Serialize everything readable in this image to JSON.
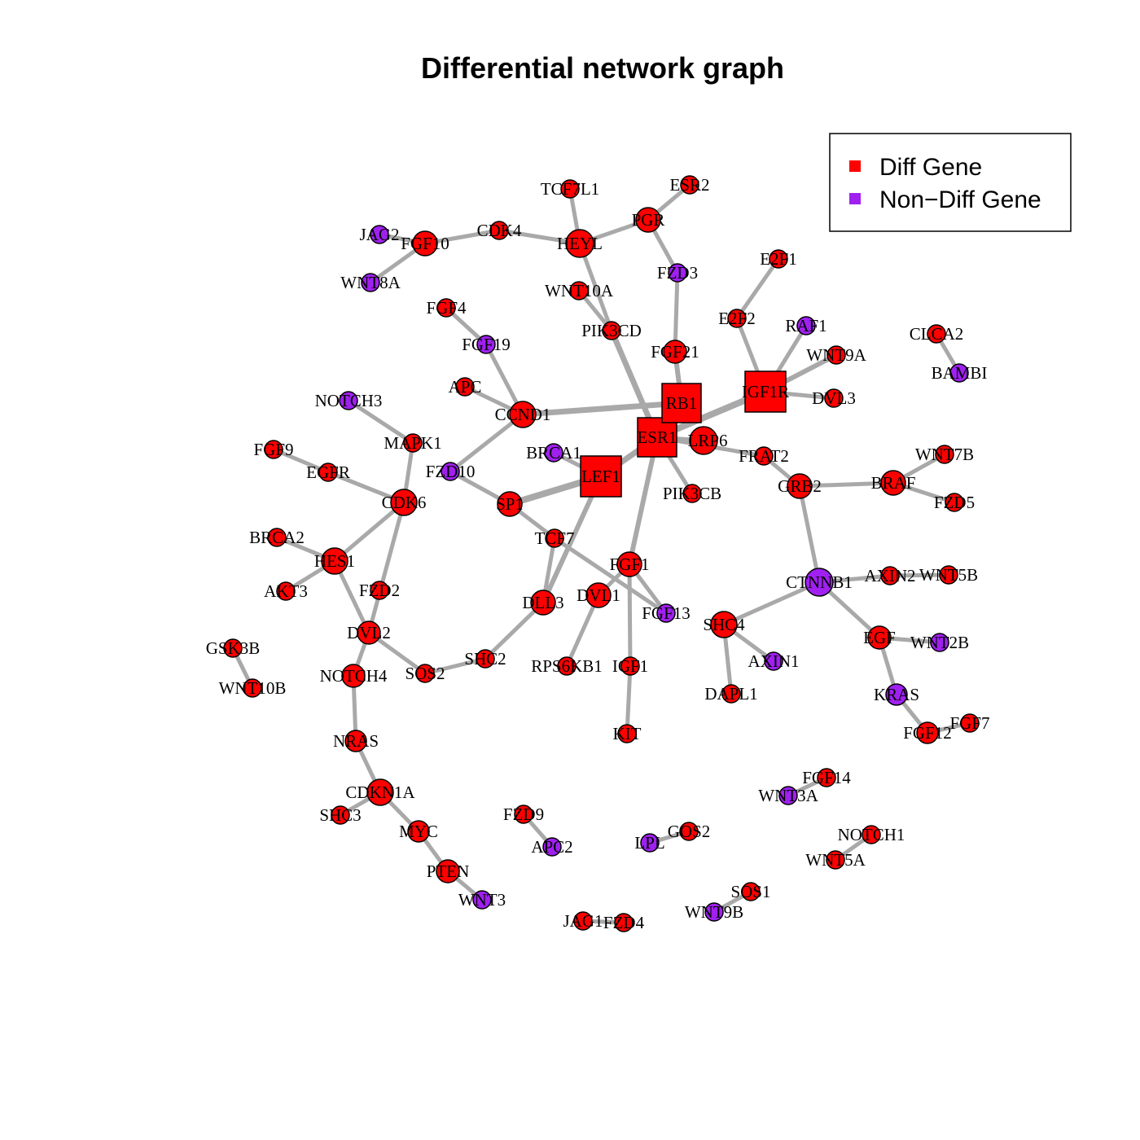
{
  "title": "Differential network graph",
  "legend": {
    "items": [
      {
        "label": "Diff Gene",
        "color": "#ff0000"
      },
      {
        "label": "Non−Diff Gene",
        "color": "#a020f0"
      }
    ]
  },
  "colors": {
    "diff": "#ff0000",
    "nondiff": "#a020f0",
    "edge": "#a9a9a9",
    "outline": "#000000"
  },
  "nodes": [
    {
      "id": "ESR1",
      "type": "diff",
      "shape": "square"
    },
    {
      "id": "RB1",
      "type": "diff",
      "shape": "square"
    },
    {
      "id": "IGF1R",
      "type": "diff",
      "shape": "square"
    },
    {
      "id": "LEF1",
      "type": "diff",
      "shape": "square"
    },
    {
      "id": "CTNNB1",
      "type": "nondiff",
      "shape": "circle"
    },
    {
      "id": "TCF7L1",
      "type": "diff",
      "shape": "circle"
    },
    {
      "id": "ESR2",
      "type": "diff",
      "shape": "circle"
    },
    {
      "id": "PGR",
      "type": "diff",
      "shape": "circle"
    },
    {
      "id": "HEYL",
      "type": "diff",
      "shape": "circle"
    },
    {
      "id": "CDK4",
      "type": "diff",
      "shape": "circle"
    },
    {
      "id": "FGF10",
      "type": "diff",
      "shape": "circle"
    },
    {
      "id": "JAG2",
      "type": "nondiff",
      "shape": "circle"
    },
    {
      "id": "WNT8A",
      "type": "nondiff",
      "shape": "circle"
    },
    {
      "id": "FZD3",
      "type": "nondiff",
      "shape": "circle"
    },
    {
      "id": "E2F1",
      "type": "diff",
      "shape": "circle"
    },
    {
      "id": "WNT10A",
      "type": "diff",
      "shape": "circle"
    },
    {
      "id": "FGF4",
      "type": "diff",
      "shape": "circle"
    },
    {
      "id": "FGF19",
      "type": "nondiff",
      "shape": "circle"
    },
    {
      "id": "E2F2",
      "type": "diff",
      "shape": "circle"
    },
    {
      "id": "RAF1",
      "type": "nondiff",
      "shape": "circle"
    },
    {
      "id": "PIK3CD",
      "type": "diff",
      "shape": "circle"
    },
    {
      "id": "CLCA2",
      "type": "diff",
      "shape": "circle"
    },
    {
      "id": "WNT9A",
      "type": "diff",
      "shape": "circle"
    },
    {
      "id": "FGF21",
      "type": "diff",
      "shape": "circle"
    },
    {
      "id": "BAMBI",
      "type": "nondiff",
      "shape": "circle"
    },
    {
      "id": "APC",
      "type": "diff",
      "shape": "circle"
    },
    {
      "id": "NOTCH3",
      "type": "nondiff",
      "shape": "circle"
    },
    {
      "id": "DVL3",
      "type": "diff",
      "shape": "circle"
    },
    {
      "id": "CCND1",
      "type": "diff",
      "shape": "circle"
    },
    {
      "id": "LRP6",
      "type": "diff",
      "shape": "circle"
    },
    {
      "id": "MAPK1",
      "type": "diff",
      "shape": "circle"
    },
    {
      "id": "FGF9",
      "type": "diff",
      "shape": "circle"
    },
    {
      "id": "BRCA1",
      "type": "nondiff",
      "shape": "circle"
    },
    {
      "id": "FRAT2",
      "type": "diff",
      "shape": "circle"
    },
    {
      "id": "WNT7B",
      "type": "diff",
      "shape": "circle"
    },
    {
      "id": "EGFR",
      "type": "diff",
      "shape": "circle"
    },
    {
      "id": "FZD10",
      "type": "nondiff",
      "shape": "circle"
    },
    {
      "id": "BRAF",
      "type": "diff",
      "shape": "circle"
    },
    {
      "id": "GRB2",
      "type": "diff",
      "shape": "circle"
    },
    {
      "id": "PIK3CB",
      "type": "diff",
      "shape": "circle"
    },
    {
      "id": "FZD5",
      "type": "diff",
      "shape": "circle"
    },
    {
      "id": "CDK6",
      "type": "diff",
      "shape": "circle"
    },
    {
      "id": "SP1",
      "type": "diff",
      "shape": "circle"
    },
    {
      "id": "BRCA2",
      "type": "diff",
      "shape": "circle"
    },
    {
      "id": "TCF7",
      "type": "diff",
      "shape": "circle"
    },
    {
      "id": "HES1",
      "type": "diff",
      "shape": "circle"
    },
    {
      "id": "FGF1",
      "type": "diff",
      "shape": "circle"
    },
    {
      "id": "AXIN2",
      "type": "diff",
      "shape": "circle"
    },
    {
      "id": "WNT5B",
      "type": "diff",
      "shape": "circle"
    },
    {
      "id": "AKT3",
      "type": "diff",
      "shape": "circle"
    },
    {
      "id": "FZD2",
      "type": "diff",
      "shape": "circle"
    },
    {
      "id": "DLL3",
      "type": "diff",
      "shape": "circle"
    },
    {
      "id": "DVL1",
      "type": "diff",
      "shape": "circle"
    },
    {
      "id": "FGF13",
      "type": "nondiff",
      "shape": "circle"
    },
    {
      "id": "SHC4",
      "type": "diff",
      "shape": "circle"
    },
    {
      "id": "EGF",
      "type": "diff",
      "shape": "circle"
    },
    {
      "id": "WNT2B",
      "type": "nondiff",
      "shape": "circle"
    },
    {
      "id": "DVL2",
      "type": "diff",
      "shape": "circle"
    },
    {
      "id": "GSK3B",
      "type": "diff",
      "shape": "circle"
    },
    {
      "id": "SHC2",
      "type": "diff",
      "shape": "circle"
    },
    {
      "id": "AXIN1",
      "type": "nondiff",
      "shape": "circle"
    },
    {
      "id": "SOS2",
      "type": "diff",
      "shape": "circle"
    },
    {
      "id": "RPS6KB1",
      "type": "diff",
      "shape": "circle"
    },
    {
      "id": "IGF1",
      "type": "diff",
      "shape": "circle"
    },
    {
      "id": "NOTCH4",
      "type": "diff",
      "shape": "circle"
    },
    {
      "id": "WNT10B",
      "type": "diff",
      "shape": "circle"
    },
    {
      "id": "DAPL1",
      "type": "diff",
      "shape": "circle"
    },
    {
      "id": "KRAS",
      "type": "nondiff",
      "shape": "circle"
    },
    {
      "id": "FGF7",
      "type": "diff",
      "shape": "circle"
    },
    {
      "id": "FGF12",
      "type": "diff",
      "shape": "circle"
    },
    {
      "id": "KIT",
      "type": "diff",
      "shape": "circle"
    },
    {
      "id": "NRAS",
      "type": "diff",
      "shape": "circle"
    },
    {
      "id": "FGF14",
      "type": "diff",
      "shape": "circle"
    },
    {
      "id": "WNT3A",
      "type": "nondiff",
      "shape": "circle"
    },
    {
      "id": "CDKN1A",
      "type": "diff",
      "shape": "circle"
    },
    {
      "id": "SHC3",
      "type": "diff",
      "shape": "circle"
    },
    {
      "id": "FZD9",
      "type": "diff",
      "shape": "circle"
    },
    {
      "id": "MYC",
      "type": "diff",
      "shape": "circle"
    },
    {
      "id": "GOS2",
      "type": "diff",
      "shape": "circle"
    },
    {
      "id": "NOTCH1",
      "type": "diff",
      "shape": "circle"
    },
    {
      "id": "LPL",
      "type": "nondiff",
      "shape": "circle"
    },
    {
      "id": "APC2",
      "type": "nondiff",
      "shape": "circle"
    },
    {
      "id": "WNT5A",
      "type": "diff",
      "shape": "circle"
    },
    {
      "id": "PTEN",
      "type": "diff",
      "shape": "circle"
    },
    {
      "id": "SOS1",
      "type": "diff",
      "shape": "circle"
    },
    {
      "id": "WNT3",
      "type": "nondiff",
      "shape": "circle"
    },
    {
      "id": "WNT9B",
      "type": "nondiff",
      "shape": "circle"
    },
    {
      "id": "JAG1",
      "type": "diff",
      "shape": "circle"
    },
    {
      "id": "FZD4",
      "type": "diff",
      "shape": "circle"
    }
  ],
  "edges": [
    {
      "source": "TCF7L1",
      "target": "HEYL"
    },
    {
      "source": "ESR2",
      "target": "PGR"
    },
    {
      "source": "PGR",
      "target": "HEYL"
    },
    {
      "source": "PGR",
      "target": "FZD3"
    },
    {
      "source": "HEYL",
      "target": "CDK4"
    },
    {
      "source": "HEYL",
      "target": "PIK3CD"
    },
    {
      "source": "CDK4",
      "target": "FGF10"
    },
    {
      "source": "FGF10",
      "target": "JAG2"
    },
    {
      "source": "FGF10",
      "target": "WNT8A"
    },
    {
      "source": "FZD3",
      "target": "FGF21"
    },
    {
      "source": "E2F1",
      "target": "E2F2"
    },
    {
      "source": "E2F2",
      "target": "IGF1R"
    },
    {
      "source": "WNT10A",
      "target": "PIK3CD"
    },
    {
      "source": "PIK3CD",
      "target": "ESR1"
    },
    {
      "source": "FGF4",
      "target": "FGF19"
    },
    {
      "source": "FGF19",
      "target": "CCND1"
    },
    {
      "source": "FGF21",
      "target": "RB1"
    },
    {
      "source": "RAF1",
      "target": "IGF1R"
    },
    {
      "source": "WNT9A",
      "target": "IGF1R"
    },
    {
      "source": "DVL3",
      "target": "IGF1R"
    },
    {
      "source": "IGF1R",
      "target": "ESR1"
    },
    {
      "source": "CLCA2",
      "target": "BAMBI"
    },
    {
      "source": "APC",
      "target": "CCND1"
    },
    {
      "source": "CCND1",
      "target": "RB1"
    },
    {
      "source": "CCND1",
      "target": "FZD10"
    },
    {
      "source": "RB1",
      "target": "ESR1"
    },
    {
      "source": "ESR1",
      "target": "LRP6"
    },
    {
      "source": "ESR1",
      "target": "LEF1"
    },
    {
      "source": "ESR1",
      "target": "PIK3CB"
    },
    {
      "source": "ESR1",
      "target": "FGF1"
    },
    {
      "source": "ESR1",
      "target": "FRAT2"
    },
    {
      "source": "FRAT2",
      "target": "GRB2"
    },
    {
      "source": "GRB2",
      "target": "BRAF"
    },
    {
      "source": "GRB2",
      "target": "CTNNB1"
    },
    {
      "source": "BRAF",
      "target": "WNT7B"
    },
    {
      "source": "BRAF",
      "target": "FZD5"
    },
    {
      "source": "NOTCH3",
      "target": "MAPK1"
    },
    {
      "source": "MAPK1",
      "target": "CDK6"
    },
    {
      "source": "FGF9",
      "target": "EGFR"
    },
    {
      "source": "EGFR",
      "target": "CDK6"
    },
    {
      "source": "BRCA1",
      "target": "LEF1"
    },
    {
      "source": "FZD10",
      "target": "SP1"
    },
    {
      "source": "SP1",
      "target": "LEF1"
    },
    {
      "source": "SP1",
      "target": "TCF7"
    },
    {
      "source": "LEF1",
      "target": "DLL3"
    },
    {
      "source": "CDK6",
      "target": "HES1"
    },
    {
      "source": "CDK6",
      "target": "DVL2"
    },
    {
      "source": "BRCA2",
      "target": "HES1"
    },
    {
      "source": "HES1",
      "target": "AKT3"
    },
    {
      "source": "HES1",
      "target": "DVL2"
    },
    {
      "source": "DVL2",
      "target": "NOTCH4"
    },
    {
      "source": "DVL2",
      "target": "SOS2"
    },
    {
      "source": "SOS2",
      "target": "SHC2"
    },
    {
      "source": "SHC2",
      "target": "DLL3"
    },
    {
      "source": "TCF7",
      "target": "DLL3"
    },
    {
      "source": "TCF7",
      "target": "FGF13"
    },
    {
      "source": "FGF1",
      "target": "DVL1"
    },
    {
      "source": "FGF1",
      "target": "IGF1"
    },
    {
      "source": "FGF1",
      "target": "FGF13"
    },
    {
      "source": "DVL1",
      "target": "RPS6KB1"
    },
    {
      "source": "IGF1",
      "target": "KIT"
    },
    {
      "source": "CTNNB1",
      "target": "SHC4"
    },
    {
      "source": "CTNNB1",
      "target": "AXIN2"
    },
    {
      "source": "CTNNB1",
      "target": "EGF"
    },
    {
      "source": "SHC4",
      "target": "AXIN1"
    },
    {
      "source": "SHC4",
      "target": "DAPL1"
    },
    {
      "source": "AXIN2",
      "target": "WNT5B"
    },
    {
      "source": "EGF",
      "target": "WNT2B"
    },
    {
      "source": "EGF",
      "target": "KRAS"
    },
    {
      "source": "KRAS",
      "target": "FGF12"
    },
    {
      "source": "FGF12",
      "target": "FGF7"
    },
    {
      "source": "GSK3B",
      "target": "WNT10B"
    },
    {
      "source": "NOTCH4",
      "target": "NRAS"
    },
    {
      "source": "NRAS",
      "target": "CDKN1A"
    },
    {
      "source": "CDKN1A",
      "target": "SHC3"
    },
    {
      "source": "CDKN1A",
      "target": "MYC"
    },
    {
      "source": "MYC",
      "target": "PTEN"
    },
    {
      "source": "PTEN",
      "target": "WNT3"
    },
    {
      "source": "FZD9",
      "target": "APC2"
    },
    {
      "source": "LPL",
      "target": "GOS2"
    },
    {
      "source": "FGF14",
      "target": "WNT3A"
    },
    {
      "source": "NOTCH1",
      "target": "WNT5A"
    },
    {
      "source": "SOS1",
      "target": "WNT9B"
    },
    {
      "source": "JAG1",
      "target": "FZD4"
    }
  ]
}
